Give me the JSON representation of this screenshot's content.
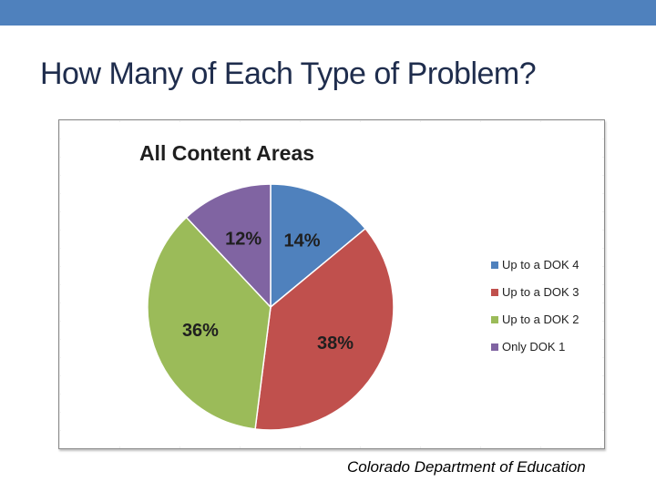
{
  "slide": {
    "title": "How Many of Each Type of Problem?",
    "source": "Colorado Department of Education",
    "accent_color": "#4f81bd"
  },
  "chart_data": {
    "type": "pie",
    "title": "All Content Areas",
    "legend_position": "right",
    "slices": [
      {
        "label": "Up to a DOK 4",
        "value": 14,
        "display": "14%",
        "color": "#4f81bd"
      },
      {
        "label": "Up to a DOK 3",
        "value": 38,
        "display": "38%",
        "color": "#c0504d"
      },
      {
        "label": "Up to a DOK 2",
        "value": 36,
        "display": "36%",
        "color": "#9bbb59"
      },
      {
        "label": "Only DOK 1",
        "value": 12,
        "display": "12%",
        "color": "#8064a2"
      }
    ]
  }
}
